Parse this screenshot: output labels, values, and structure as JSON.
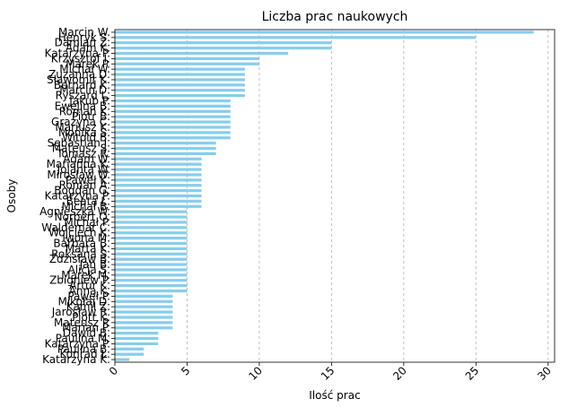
{
  "chart_data": {
    "type": "bar",
    "orientation": "horizontal",
    "title": "Liczba prac naukowych",
    "xlabel": "Ilość prac",
    "ylabel": "Osoby",
    "xlim": [
      0,
      30
    ],
    "xticks": [
      0,
      5,
      10,
      15,
      20,
      25,
      30
    ],
    "grid": "x-dashed",
    "bar_color": "#87ceeb",
    "categories": [
      "Marcin W.",
      "Henryk S.",
      "Damian Z.",
      "Adam K.",
      "Katarzyna P.",
      "Krzysztof I.",
      "Marek P.",
      "Michał W.",
      "Zuzanna D.",
      "Sławomir K.",
      "Bernard K.",
      "Marcin D.",
      "Ryszard L.",
      "Jakub P.",
      "Ewelina B.",
      "Roman K.",
      "Piotr B.",
      "Grażyna C.",
      "Mariusz K.",
      "Monika S.",
      "Witold B.",
      "Sebastian J.",
      "Mateusz S.",
      "Tomasz R.",
      "Adam W.",
      "Marianna K.",
      "Jolanta W.",
      "Mirosław W.",
      "Paweł K.",
      "Roman A.",
      "Bogdan G.",
      "Katarzyna P.",
      "Beata Ł.",
      "Michał B.",
      "Agnieszka W.",
      "Norbert O.",
      "Michał P.",
      "Waldemar C.",
      "Wojciech K.",
      "Iwona M.",
      "Barbara B.",
      "Marta K.",
      "Roksana S.",
      "Zdzisław B.",
      "Jan B.",
      "Alicja S.",
      "Marek M.",
      "Zbigniew P.",
      "Artur K.",
      "Anna K.",
      "Paweł P.",
      "Mikołaj D.",
      "Kamil Z.",
      "Jarosław R.",
      "Piotr K.",
      "Mateusz P.",
      "Marian P.",
      "Dawid B.",
      "Paulina M.",
      "Katarzyna P.",
      "Paulina B.",
      "Konrad Ł.",
      "Katarzyna K."
    ],
    "values": [
      29,
      25,
      15,
      15,
      12,
      10,
      10,
      9,
      9,
      9,
      9,
      9,
      9,
      8,
      8,
      8,
      8,
      8,
      8,
      8,
      8,
      7,
      7,
      7,
      6,
      6,
      6,
      6,
      6,
      6,
      6,
      6,
      6,
      6,
      5,
      5,
      5,
      5,
      5,
      5,
      5,
      5,
      5,
      5,
      5,
      5,
      5,
      5,
      5,
      5,
      4,
      4,
      4,
      4,
      4,
      4,
      4,
      3,
      3,
      3,
      2,
      2,
      1
    ]
  }
}
